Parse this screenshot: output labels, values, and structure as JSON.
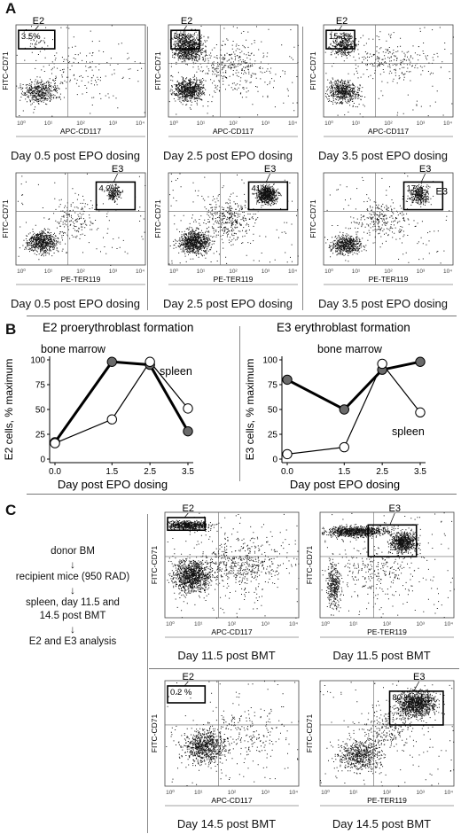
{
  "panel_letters": {
    "a": "A",
    "b": "B",
    "c": "C"
  },
  "panelA": {
    "top_row": [
      {
        "gate": "E2",
        "percent": "3.5%",
        "xaxis": "APC-CD117",
        "yaxis": "FITC-CD71",
        "caption": "Day 0.5 post EPO dosing"
      },
      {
        "gate": "E2",
        "percent": "38%",
        "xaxis": "APC-CD117",
        "yaxis": "FITC-CD71",
        "caption": "Day 2.5 post EPO dosing"
      },
      {
        "gate": "E2",
        "percent": "15.3%",
        "xaxis": "APC-CD117",
        "yaxis": "FITC-CD71",
        "caption": "Day 3.5 post EPO dosing"
      }
    ],
    "bottom_row": [
      {
        "gate": "E3",
        "percent": "4.2%",
        "xaxis": "PE-TER119",
        "yaxis": "FITC-CD71",
        "caption": "Day 0.5 post EPO dosing"
      },
      {
        "gate": "E3",
        "percent": "41%",
        "xaxis": "PE-TER119",
        "yaxis": "FITC-CD71",
        "caption": "Day 2.5 post EPO dosing"
      },
      {
        "gate": "E3",
        "percent": "17%",
        "xaxis": "PE-TER119",
        "yaxis": "FITC-CD71",
        "caption": "Day 3.5 post EPO dosing",
        "side_label": "E3"
      }
    ],
    "log_ticks": [
      "10⁰",
      "10¹",
      "10²",
      "10³",
      "10⁴"
    ]
  },
  "panelB": {
    "chart_data": [
      {
        "type": "line",
        "title": "E2  proerythroblast formation",
        "xlabel": "Day post EPO dosing",
        "ylabel": "E2 cells, % maximum",
        "x_ticks": [
          "0.0",
          "1.5",
          "2.5",
          "3.5"
        ],
        "y_ticks": [
          "0",
          "25",
          "50",
          "75",
          "100"
        ],
        "ylim": [
          0,
          100
        ],
        "series": [
          {
            "name": "bone marrow",
            "x": [
              0.0,
              1.5,
              2.5,
              3.5
            ],
            "y": [
              17,
              98,
              95,
              28
            ]
          },
          {
            "name": "spleen",
            "x": [
              0.0,
              1.5,
              2.5,
              3.5
            ],
            "y": [
              16,
              40,
              98,
              51
            ]
          }
        ]
      },
      {
        "type": "line",
        "title": "E3  erythroblast formation",
        "xlabel": "Day post EPO dosing",
        "ylabel": "E3 cells, % maximum",
        "x_ticks": [
          "0.0",
          "1.5",
          "2.5",
          "3.5"
        ],
        "y_ticks": [
          "0",
          "25",
          "50",
          "75",
          "100"
        ],
        "ylim": [
          0,
          100
        ],
        "series": [
          {
            "name": "bone marrow",
            "x": [
              0.0,
              1.5,
              2.5,
              3.5
            ],
            "y": [
              80,
              50,
              90,
              98
            ]
          },
          {
            "name": "spleen",
            "x": [
              0.0,
              1.5,
              2.5,
              3.5
            ],
            "y": [
              5,
              12,
              96,
              47
            ]
          }
        ]
      }
    ],
    "colors": {
      "bone_marrow_fill": "#6a6a6a",
      "spleen_fill": "#ffffff"
    }
  },
  "panelC": {
    "flow": [
      "donor BM",
      "recipient mice (950 RAD)",
      "spleen, day 11.5 and",
      "14.5 post  BMT",
      "E2 and E3 analysis"
    ],
    "arrow": "↓",
    "plots": [
      {
        "gate": "E2",
        "percent": "24 %",
        "xaxis": "APC-CD117",
        "yaxis": "FITC-CD71",
        "caption": "Day 11.5 post BMT"
      },
      {
        "gate": "E3",
        "percent": "58 %",
        "xaxis": "PE-TER119",
        "yaxis": "FITC-CD71",
        "caption": "Day 11.5 post BMT"
      },
      {
        "gate": "E2",
        "percent": "0.2 %",
        "xaxis": "APC-CD117",
        "yaxis": "FITC-CD71",
        "caption": "Day 14.5 post BMT"
      },
      {
        "gate": "E3",
        "percent": "80 %",
        "xaxis": "PE-TER119",
        "yaxis": "FITC-CD71",
        "caption": "Day 14.5 post BMT"
      }
    ]
  }
}
